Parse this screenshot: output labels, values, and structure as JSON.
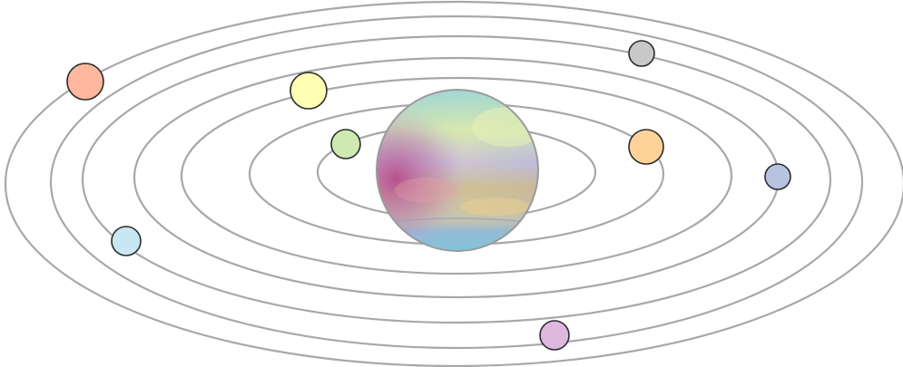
{
  "diagram": {
    "orbit_count": 7,
    "orbit_color": "#a8a8a8",
    "planet_outline_color": "#2b2b2b",
    "sun": {
      "icon": "iridescent-sun-icon",
      "colors": [
        "#9fd7d6",
        "#d7e8a8",
        "#c8b4dc",
        "#b84a8c",
        "#d8b47a",
        "#8fb7d8",
        "#7ec8d8"
      ]
    },
    "planets": [
      {
        "name": "planet-green",
        "color": "#cfeab0"
      },
      {
        "name": "planet-orange",
        "color": "#ffd29a"
      },
      {
        "name": "planet-yellow",
        "color": "#ffffb4"
      },
      {
        "name": "planet-blue",
        "color": "#b7c4e0"
      },
      {
        "name": "planet-gray",
        "color": "#c8c8c8"
      },
      {
        "name": "planet-cyan",
        "color": "#c7e7f2"
      },
      {
        "name": "planet-violet",
        "color": "#ddb8df"
      },
      {
        "name": "planet-salmon",
        "color": "#ffb79e"
      }
    ]
  }
}
